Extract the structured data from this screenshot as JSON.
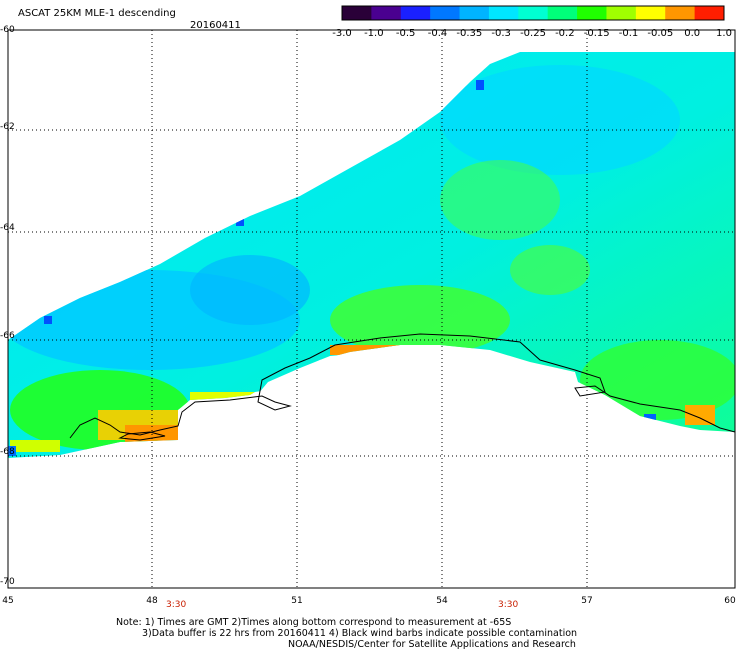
{
  "header": {
    "title": "ASCAT 25KM MLE-1 descending",
    "date": "20160411"
  },
  "colorbar": {
    "ticks": [
      "-3.0",
      "-1.0",
      "-0.5",
      "-0.4",
      "-0.35",
      "-0.3",
      "-0.25",
      "-0.2",
      "-0.15",
      "-0.1",
      "-0.05",
      "0.0",
      "1.0"
    ],
    "colors": [
      "#2a0038",
      "#4a0090",
      "#1a20ff",
      "#0078ff",
      "#00b4ff",
      "#00e6ff",
      "#00ffd2",
      "#00ff7a",
      "#20ff00",
      "#a0ff00",
      "#ffff00",
      "#ff9600",
      "#ff1e00"
    ]
  },
  "map": {
    "lat_labels": [
      "-60",
      "-62",
      "-64",
      "-66",
      "-68",
      "-70"
    ],
    "lon_labels": [
      "45",
      "48",
      "51",
      "54",
      "57",
      "60"
    ],
    "time_labels": [
      "3:30",
      "3:30"
    ]
  },
  "footer": {
    "note_line1": "Note: 1) Times are GMT 2)Times along bottom correspond to measurement at -65S",
    "note_line2": "3)Data buffer is 22 hrs from 20160411 4) Black wind barbs indicate possible contamination",
    "credit": "NOAA/NESDIS/Center for Satellite Applications and Research"
  }
}
